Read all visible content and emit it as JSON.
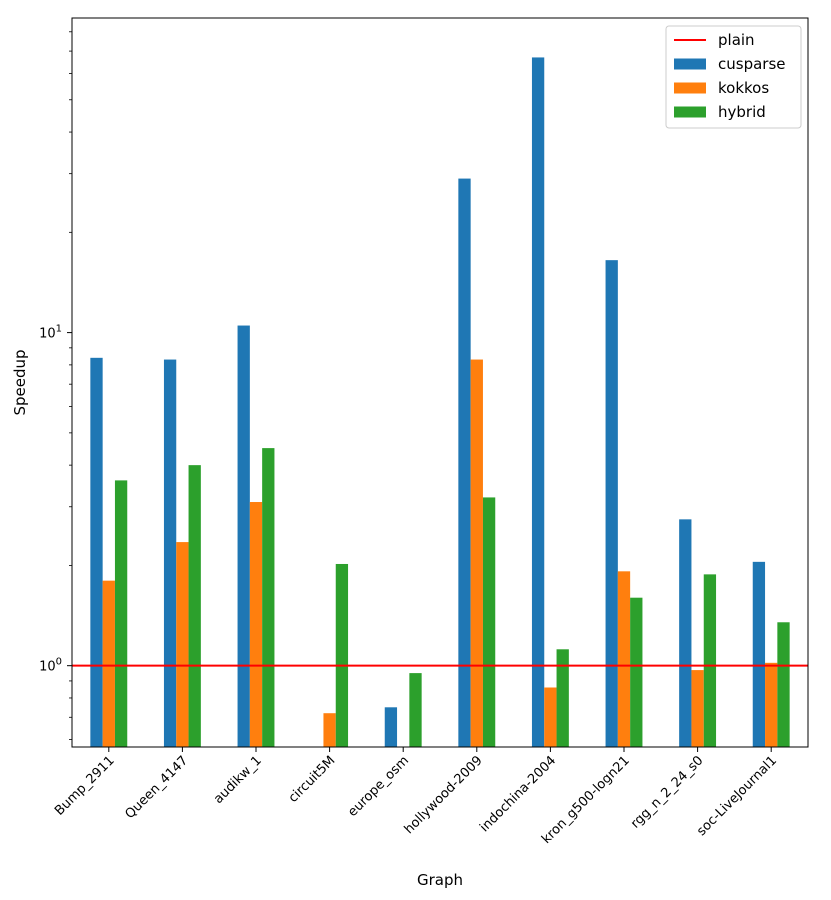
{
  "chart_data": {
    "type": "bar",
    "title": "",
    "xlabel": "Graph",
    "ylabel": "Speedup",
    "yscale": "log",
    "ylim": [
      0.57,
      88
    ],
    "yticks": [
      {
        "value": 1,
        "base": "10",
        "exp": "0"
      },
      {
        "value": 10,
        "base": "10",
        "exp": "1"
      }
    ],
    "categories": [
      "Bump_2911",
      "Queen_4147",
      "audikw_1",
      "circuit5M",
      "europe_osm",
      "hollywood-2009",
      "indochina-2004",
      "kron_g500-logn21",
      "rgg_n_2_24_s0",
      "soc-LiveJournal1"
    ],
    "series": [
      {
        "name": "cusparse",
        "color": "#1f77b4",
        "values": [
          8.4,
          8.3,
          10.5,
          null,
          0.75,
          29,
          67,
          16.5,
          2.75,
          2.05
        ]
      },
      {
        "name": "kokkos",
        "color": "#ff7f0e",
        "values": [
          1.8,
          2.35,
          3.1,
          0.72,
          null,
          8.3,
          0.86,
          1.92,
          0.97,
          1.02
        ]
      },
      {
        "name": "hybrid",
        "color": "#2ca02c",
        "values": [
          3.6,
          4.0,
          4.5,
          2.02,
          0.95,
          3.2,
          1.12,
          1.6,
          1.88,
          1.35
        ]
      }
    ],
    "reference_line": {
      "name": "plain",
      "value": 1,
      "color": "#ff0000"
    },
    "legend": {
      "position": "top-right",
      "entries": [
        "plain",
        "cusparse",
        "kokkos",
        "hybrid"
      ]
    }
  }
}
